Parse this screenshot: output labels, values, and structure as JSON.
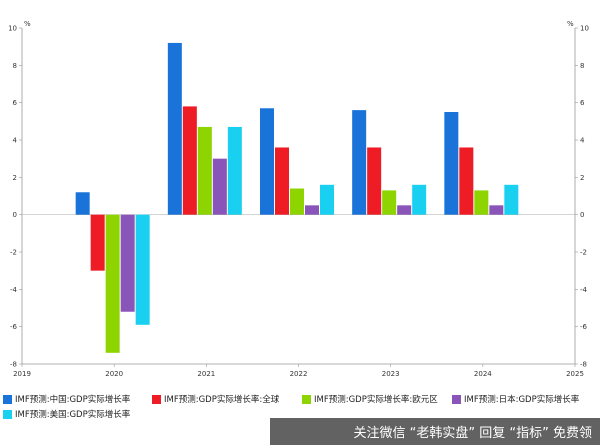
{
  "chart_data": {
    "type": "bar",
    "categories": [
      "2020",
      "2021",
      "2022",
      "2023",
      "2024"
    ],
    "x_ticks": [
      "2019",
      "2020",
      "2021",
      "2022",
      "2023",
      "2024",
      "2025"
    ],
    "unit_left": "%",
    "unit_right": "%",
    "ylim": [
      -8,
      10
    ],
    "yticks": [
      -8,
      -6,
      -4,
      -2,
      0,
      2,
      4,
      6,
      8,
      10
    ],
    "grid": false,
    "legend_position": "bottom",
    "series": [
      {
        "name": "IMF预测:中国:GDP实际增长率",
        "color": "#1a73d9",
        "values": [
          1.2,
          9.2,
          5.7,
          5.6,
          5.5
        ]
      },
      {
        "name": "IMF预测:GDP实际增长率:全球",
        "color": "#ee1c25",
        "values": [
          -3.0,
          5.8,
          3.6,
          3.6,
          3.6
        ]
      },
      {
        "name": "IMF预测:GDP实际增长率:欧元区",
        "color": "#8dd400",
        "values": [
          -7.4,
          4.7,
          1.4,
          1.3,
          1.3
        ]
      },
      {
        "name": "IMF预测:日本:GDP实际增长率",
        "color": "#8a55b8",
        "values": [
          -5.2,
          3.0,
          0.5,
          0.5,
          0.5
        ]
      },
      {
        "name": "IMF预测:美国:GDP实际增长率",
        "color": "#19d0f0",
        "values": [
          -5.9,
          4.7,
          1.6,
          1.6,
          1.6
        ]
      }
    ]
  },
  "footer": {
    "text": "关注微信 “老韩实盘” 回复 “指标” 免费领"
  }
}
